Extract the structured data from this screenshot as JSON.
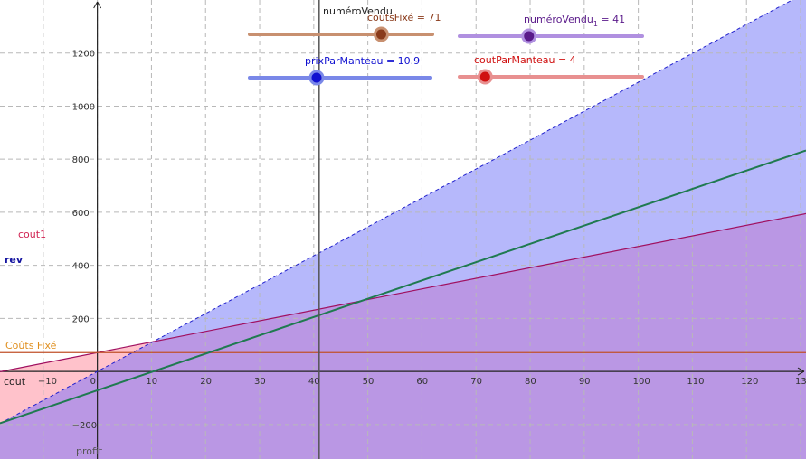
{
  "graph": {
    "x_axis_range": [
      -18,
      131
    ],
    "y_axis_range": [
      -330,
      1400
    ],
    "x_ticks": [
      "−10",
      "0",
      "10",
      "20",
      "30",
      "40",
      "50",
      "60",
      "70",
      "80",
      "90",
      "100",
      "110",
      "120",
      "130"
    ],
    "y_ticks": [
      "−200",
      "200",
      "400",
      "600",
      "800",
      "1000",
      "1200"
    ],
    "y_tick_values": [
      -200,
      200,
      400,
      600,
      800,
      1000,
      1200
    ],
    "x_tick_values": [
      -10,
      0,
      10,
      20,
      30,
      40,
      50,
      60,
      70,
      80,
      90,
      100,
      110,
      120,
      130
    ],
    "grid": true,
    "colors": {
      "revenue_fill": "#b6b8fb",
      "cost_fill": "#bb90df",
      "cost_fill_left": "#ffc2cb",
      "revenue_line": "#2020cc",
      "cost_line": "#a01060",
      "profit_line": "#1f7a50",
      "fixed_cost_line": "#c0502a",
      "fixed_cost_label": "#e09020",
      "vertical_line": "#555555"
    }
  },
  "functions": {
    "revenue": {
      "slope": 10.9,
      "intercept": 0
    },
    "cost": {
      "slope": 4,
      "intercept": 71
    },
    "profit": {
      "slope": 6.9,
      "intercept": -71
    },
    "fixed_cost": {
      "value": 71
    },
    "vertical_x": 41
  },
  "labels": {
    "cout1": "cout1",
    "rev": "rev",
    "couts_fixe": "Coûts Fixé",
    "cout": "cout",
    "profit": "profit",
    "numero_vendu": "numéroVendu"
  },
  "sliders": {
    "coutsFixe": {
      "name": "coutsFixé",
      "display": "coutsFixé = 71",
      "value": 71,
      "min": 0,
      "max": 200,
      "fraction": 0.72,
      "color": "#c89070",
      "knob": "#8a3a1a"
    },
    "numeroVendu": {
      "name": "numéroVendu",
      "sub": "1",
      "display_prefix": "numéroVendu",
      "display_suffix": " = 41",
      "value": 41,
      "fraction": 0.38,
      "color": "#b090e0",
      "knob": "#5a1a8a"
    },
    "prixParManteau": {
      "name": "prixParManteau",
      "display": "prixParManteau = 10.9",
      "value": 10.9,
      "fraction": 0.37,
      "color": "#7a88e8",
      "knob": "#1010d0"
    },
    "coutParManteau": {
      "name": "coutParManteau",
      "display": "coutParManteau = 4",
      "value": 4,
      "fraction": 0.14,
      "color": "#e89090",
      "knob": "#d01010"
    }
  }
}
